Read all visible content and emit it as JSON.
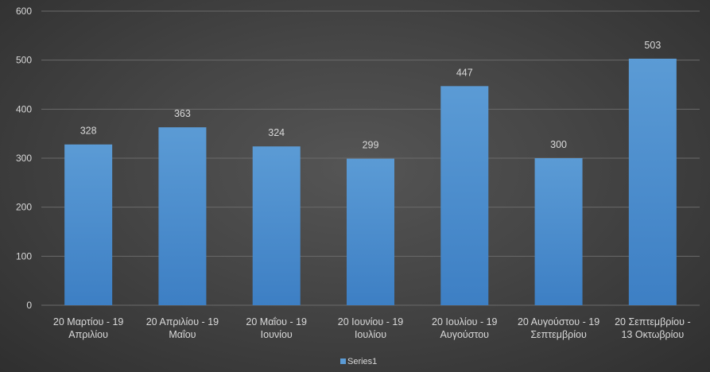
{
  "chart_data": {
    "type": "bar",
    "categories": [
      [
        "20 Μαρτίου - 19",
        "Απριλίου"
      ],
      [
        "20 Απριλίου - 19",
        "Μαΐου"
      ],
      [
        "20 Μαΐου - 19",
        "Ιουνίου"
      ],
      [
        "20 Ιουνίου - 19",
        "Ιουλίου"
      ],
      [
        "20 Ιουλίου - 19",
        "Αυγούστου"
      ],
      [
        "20 Αυγούστου - 19",
        "Σεπτεμβρίου"
      ],
      [
        "20 Σεπτεμβρίου -",
        "13 Οκτωβρίου"
      ]
    ],
    "series": [
      {
        "name": "Series1",
        "values": [
          328,
          363,
          324,
          299,
          447,
          300,
          503
        ]
      }
    ],
    "ylim": [
      0,
      600
    ],
    "yticks": [
      0,
      100,
      200,
      300,
      400,
      500,
      600
    ],
    "grid": true,
    "legend_position": "bottom",
    "colors": {
      "bar_top": "#5b9bd5",
      "bar_bottom": "#3d7fc4",
      "gridline": "#6a6a6a",
      "text": "#d9d9d9"
    }
  }
}
